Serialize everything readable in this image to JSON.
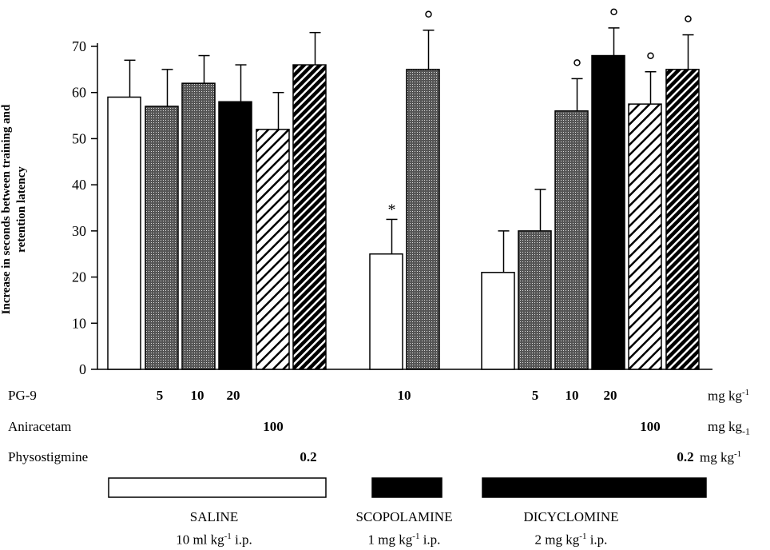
{
  "chart_data": {
    "type": "bar",
    "ylabel_lines": [
      "Increase in seconds between training and",
      "retention latency"
    ],
    "ylim": [
      0,
      70
    ],
    "yticks": [
      0,
      10,
      20,
      30,
      40,
      50,
      60,
      70
    ],
    "bars": [
      {
        "value": 59,
        "err": 8,
        "fill": "white",
        "mark": ""
      },
      {
        "value": 57,
        "err": 8,
        "fill": "dots",
        "mark": ""
      },
      {
        "value": 62,
        "err": 6,
        "fill": "dots",
        "mark": ""
      },
      {
        "value": 58,
        "err": 8,
        "fill": "black",
        "mark": ""
      },
      {
        "value": 52,
        "err": 8,
        "fill": "hatch-light",
        "mark": ""
      },
      {
        "value": 66,
        "err": 7,
        "fill": "hatch-dark",
        "mark": ""
      },
      {
        "value": 25,
        "err": 7.5,
        "fill": "white",
        "mark": "*"
      },
      {
        "value": 65,
        "err": 8.5,
        "fill": "dots",
        "mark": "o"
      },
      {
        "value": 21,
        "err": 9,
        "fill": "white",
        "mark": ""
      },
      {
        "value": 30,
        "err": 9,
        "fill": "dots",
        "mark": ""
      },
      {
        "value": 56,
        "err": 7,
        "fill": "dots",
        "mark": "o"
      },
      {
        "value": 68,
        "err": 6,
        "fill": "black",
        "mark": "o"
      },
      {
        "value": 57.5,
        "err": 7,
        "fill": "hatch-light",
        "mark": "o"
      },
      {
        "value": 65,
        "err": 7.5,
        "fill": "hatch-dark",
        "mark": "o"
      }
    ]
  },
  "rows": {
    "pg9": {
      "label": "PG-9",
      "values": [
        "5",
        "10",
        "20",
        "10",
        "5",
        "10",
        "20"
      ],
      "unit": "mg kg",
      "unit_sup": "-1"
    },
    "aniracetam": {
      "label": "Aniracetam",
      "values": [
        "100",
        "100"
      ],
      "unit": "mg kg",
      "unit_sub": "-1"
    },
    "physostigmine": {
      "label": "Physostigmine",
      "values": [
        "0.2",
        "0.2"
      ],
      "unit": "mg kg",
      "unit_sup": "-1"
    }
  },
  "groups": [
    {
      "name": "SALINE",
      "dose": "10 ml kg",
      "dose_exp": "-1",
      "route": " i.p.",
      "fill": "white"
    },
    {
      "name": "SCOPOLAMINE",
      "dose": "1 mg kg",
      "dose_exp": "-1",
      "route": " i.p.",
      "fill": "black"
    },
    {
      "name": "DICYCLOMINE",
      "dose": "2 mg kg",
      "dose_exp": "-1",
      "route": " i.p.",
      "fill": "black"
    }
  ]
}
